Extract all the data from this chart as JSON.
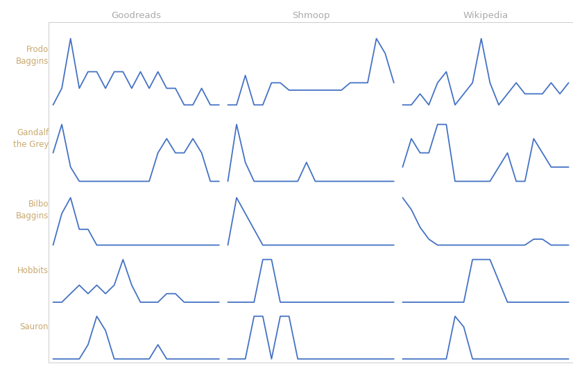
{
  "sources": [
    "Goodreads",
    "Shmoop",
    "Wikipedia"
  ],
  "characters": [
    "Frodo\nBaggins",
    "Gandalf\nthe Grey",
    "Bilbo\nBaggins",
    "Hobbits",
    "Sauron"
  ],
  "char_label_colors": [
    "#c8a86e",
    "#c8a86e",
    "#c8a86e",
    "#c8a86e",
    "#c8a86e"
  ],
  "source_label_color": "#aaaaaa",
  "line_color": "#4472c4",
  "line_width": 1.3,
  "background_color": "#ffffff",
  "grid_color": "#cccccc",
  "data": {
    "Frodo\nBaggins": {
      "Goodreads": [
        0,
        1,
        4,
        1,
        2,
        2,
        1,
        2,
        2,
        1,
        2,
        1,
        2,
        1,
        1,
        0,
        0,
        1,
        0,
        0
      ],
      "Shmoop": [
        0,
        0,
        4,
        0,
        0,
        3,
        3,
        2,
        2,
        2,
        2,
        2,
        2,
        2,
        3,
        3,
        3,
        9,
        7,
        3
      ],
      "Wikipedia": [
        2,
        2,
        3,
        2,
        4,
        5,
        2,
        3,
        4,
        8,
        4,
        2,
        3,
        4,
        3,
        3,
        3,
        4,
        3,
        4
      ]
    },
    "Gandalf\nthe Grey": {
      "Goodreads": [
        2,
        4,
        1,
        0,
        0,
        0,
        0,
        0,
        0,
        0,
        0,
        0,
        2,
        3,
        2,
        2,
        3,
        2,
        0,
        0
      ],
      "Shmoop": [
        0,
        3,
        1,
        0,
        0,
        0,
        0,
        0,
        0,
        1,
        0,
        0,
        0,
        0,
        0,
        0,
        0,
        0,
        0,
        0
      ],
      "Wikipedia": [
        1,
        3,
        2,
        2,
        4,
        4,
        0,
        0,
        0,
        0,
        0,
        1,
        2,
        0,
        0,
        3,
        2,
        1,
        1,
        1
      ]
    },
    "Bilbo\nBaggins": {
      "Goodreads": [
        0,
        2,
        3,
        1,
        1,
        0,
        0,
        0,
        0,
        0,
        0,
        0,
        0,
        0,
        0,
        0,
        0,
        0,
        0,
        0
      ],
      "Shmoop": [
        0,
        3,
        2,
        1,
        0,
        0,
        0,
        0,
        0,
        0,
        0,
        0,
        0,
        0,
        0,
        0,
        0,
        0,
        0,
        0
      ],
      "Wikipedia": [
        8,
        6,
        3,
        1,
        0,
        0,
        0,
        0,
        0,
        0,
        0,
        0,
        0,
        0,
        0,
        1,
        1,
        0,
        0,
        0
      ]
    },
    "Hobbits": {
      "Goodreads": [
        0,
        0,
        1,
        2,
        1,
        2,
        1,
        2,
        5,
        2,
        0,
        0,
        0,
        1,
        1,
        0,
        0,
        0,
        0,
        0
      ],
      "Shmoop": [
        0,
        0,
        0,
        0,
        3,
        3,
        0,
        0,
        0,
        0,
        0,
        0,
        0,
        0,
        0,
        0,
        0,
        0,
        0,
        0
      ],
      "Wikipedia": [
        0,
        0,
        0,
        0,
        0,
        0,
        0,
        0,
        2,
        2,
        2,
        1,
        0,
        0,
        0,
        0,
        0,
        0,
        0,
        0
      ]
    },
    "Sauron": {
      "Goodreads": [
        0,
        0,
        0,
        0,
        1,
        3,
        2,
        0,
        0,
        0,
        0,
        0,
        1,
        0,
        0,
        0,
        0,
        0,
        0,
        0
      ],
      "Shmoop": [
        0,
        0,
        0,
        1,
        1,
        0,
        1,
        1,
        0,
        0,
        0,
        0,
        0,
        0,
        0,
        0,
        0,
        0,
        0,
        0
      ],
      "Wikipedia": [
        0,
        0,
        0,
        0,
        0,
        0,
        4,
        3,
        0,
        0,
        0,
        0,
        0,
        0,
        0,
        0,
        0,
        0,
        0,
        0
      ]
    }
  },
  "row_height_ratios": [
    1.4,
    1.2,
    1.0,
    0.9,
    0.9
  ]
}
